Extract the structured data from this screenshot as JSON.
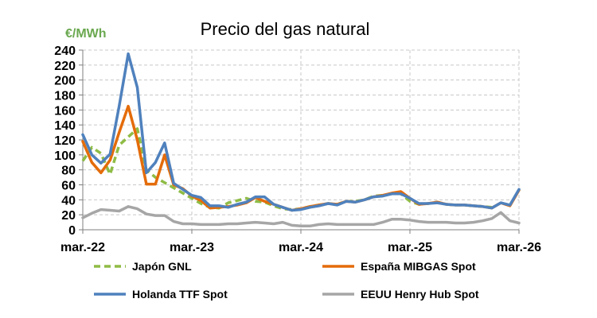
{
  "chart_data": {
    "type": "line",
    "title": "Precio del gas natural",
    "ylabel": "€/MWh",
    "ylim": [
      0,
      240
    ],
    "yticks": [
      0,
      20,
      40,
      60,
      80,
      100,
      120,
      140,
      160,
      180,
      200,
      220,
      240
    ],
    "xlim": [
      "2022-03",
      "2026-03"
    ],
    "xticks": [
      {
        "x": "2022-03",
        "label": "mar.-22"
      },
      {
        "x": "2023-03",
        "label": "mar.-23"
      },
      {
        "x": "2024-03",
        "label": "mar.-24"
      },
      {
        "x": "2025-03",
        "label": "mar.-25"
      },
      {
        "x": "2026-03",
        "label": "mar.-26"
      }
    ],
    "grid": true,
    "legend_position": "bottom",
    "series": [
      {
        "name": "Japón GNL",
        "color": "#8fbc45",
        "style": "dashed",
        "points": [
          [
            "2022-03",
            92
          ],
          [
            "2022-04",
            110
          ],
          [
            "2022-05",
            102
          ],
          [
            "2022-06",
            74
          ],
          [
            "2022-07",
            113
          ],
          [
            "2022-09",
            135
          ],
          [
            "2022-10",
            80
          ],
          [
            "2022-11",
            70
          ],
          [
            "2023-03",
            42
          ],
          [
            "2023-04",
            35
          ],
          [
            "2023-05",
            30
          ],
          [
            "2023-06",
            29
          ],
          [
            "2023-07",
            36
          ],
          [
            "2023-08",
            39
          ],
          [
            "2023-09",
            42
          ],
          [
            "2023-10",
            38
          ],
          [
            "2023-11",
            37
          ],
          [
            "2023-12",
            32
          ],
          [
            "2024-01",
            28
          ],
          [
            "2024-02",
            27
          ],
          [
            "2024-03",
            28
          ],
          [
            "2024-04",
            31
          ],
          [
            "2024-05",
            33
          ],
          [
            "2024-06",
            35
          ],
          [
            "2024-07",
            34
          ],
          [
            "2024-08",
            38
          ],
          [
            "2024-09",
            38
          ],
          [
            "2024-10",
            40
          ],
          [
            "2024-11",
            45
          ],
          [
            "2024-12",
            46
          ],
          [
            "2025-01",
            48
          ],
          [
            "2025-02",
            48
          ],
          [
            "2025-03",
            38
          ],
          [
            "2025-04",
            34
          ],
          [
            "2025-05",
            35
          ],
          [
            "2025-06",
            37
          ],
          [
            "2025-07",
            34
          ],
          [
            "2025-08",
            33
          ],
          [
            "2025-09",
            33
          ],
          [
            "2025-10",
            32
          ],
          [
            "2025-11",
            31
          ],
          [
            "2025-12",
            30
          ]
        ]
      },
      {
        "name": "España MIBGAS Spot",
        "color": "#e46c0a",
        "style": "solid",
        "points": [
          [
            "2022-03",
            118
          ],
          [
            "2022-04",
            90
          ],
          [
            "2022-05",
            76
          ],
          [
            "2022-06",
            93
          ],
          [
            "2022-07",
            130
          ],
          [
            "2022-08",
            165
          ],
          [
            "2022-09",
            120
          ],
          [
            "2022-10",
            61
          ],
          [
            "2022-11",
            61
          ],
          [
            "2022-12",
            100
          ],
          [
            "2023-01",
            60
          ],
          [
            "2023-02",
            55
          ],
          [
            "2023-03",
            45
          ],
          [
            "2023-04",
            39
          ],
          [
            "2023-05",
            29
          ],
          [
            "2023-06",
            30
          ],
          [
            "2023-07",
            31
          ],
          [
            "2023-08",
            33
          ],
          [
            "2023-09",
            36
          ],
          [
            "2023-10",
            43
          ],
          [
            "2023-11",
            38
          ],
          [
            "2023-12",
            34
          ],
          [
            "2024-01",
            30
          ],
          [
            "2024-02",
            26
          ],
          [
            "2024-03",
            28
          ],
          [
            "2024-04",
            31
          ],
          [
            "2024-05",
            33
          ],
          [
            "2024-06",
            35
          ],
          [
            "2024-07",
            34
          ],
          [
            "2024-08",
            38
          ],
          [
            "2024-09",
            37
          ],
          [
            "2024-10",
            40
          ],
          [
            "2024-11",
            44
          ],
          [
            "2024-12",
            46
          ],
          [
            "2025-01",
            49
          ],
          [
            "2025-02",
            51
          ],
          [
            "2025-03",
            42
          ],
          [
            "2025-04",
            34
          ],
          [
            "2025-05",
            35
          ],
          [
            "2025-06",
            37
          ],
          [
            "2025-07",
            34
          ],
          [
            "2025-08",
            33
          ],
          [
            "2025-09",
            33
          ],
          [
            "2025-10",
            32
          ],
          [
            "2025-11",
            31
          ],
          [
            "2025-12",
            29
          ],
          [
            "2026-01",
            36
          ],
          [
            "2026-02",
            32
          ],
          [
            "2026-03",
            53
          ]
        ]
      },
      {
        "name": "Holanda TTF Spot",
        "color": "#4f81bd",
        "style": "solid",
        "points": [
          [
            "2022-03",
            127
          ],
          [
            "2022-04",
            100
          ],
          [
            "2022-05",
            89
          ],
          [
            "2022-06",
            101
          ],
          [
            "2022-07",
            165
          ],
          [
            "2022-08",
            235
          ],
          [
            "2022-09",
            190
          ],
          [
            "2022-10",
            76
          ],
          [
            "2022-11",
            90
          ],
          [
            "2022-12",
            116
          ],
          [
            "2023-01",
            62
          ],
          [
            "2023-02",
            54
          ],
          [
            "2023-03",
            46
          ],
          [
            "2023-04",
            43
          ],
          [
            "2023-05",
            32
          ],
          [
            "2023-06",
            32
          ],
          [
            "2023-07",
            30
          ],
          [
            "2023-08",
            34
          ],
          [
            "2023-09",
            37
          ],
          [
            "2023-10",
            44
          ],
          [
            "2023-11",
            44
          ],
          [
            "2023-12",
            34
          ],
          [
            "2024-01",
            30
          ],
          [
            "2024-02",
            26
          ],
          [
            "2024-03",
            27
          ],
          [
            "2024-04",
            30
          ],
          [
            "2024-05",
            32
          ],
          [
            "2024-06",
            35
          ],
          [
            "2024-07",
            33
          ],
          [
            "2024-08",
            38
          ],
          [
            "2024-09",
            37
          ],
          [
            "2024-10",
            40
          ],
          [
            "2024-11",
            44
          ],
          [
            "2024-12",
            45
          ],
          [
            "2025-01",
            48
          ],
          [
            "2025-02",
            48
          ],
          [
            "2025-03",
            42
          ],
          [
            "2025-04",
            35
          ],
          [
            "2025-05",
            35
          ],
          [
            "2025-06",
            36
          ],
          [
            "2025-07",
            34
          ],
          [
            "2025-08",
            33
          ],
          [
            "2025-09",
            33
          ],
          [
            "2025-10",
            32
          ],
          [
            "2025-11",
            31
          ],
          [
            "2025-12",
            29
          ],
          [
            "2026-01",
            36
          ],
          [
            "2026-02",
            33
          ],
          [
            "2026-03",
            54
          ]
        ]
      },
      {
        "name": "EEUU Henry Hub Spot",
        "color": "#a6a6a6",
        "style": "solid",
        "points": [
          [
            "2022-03",
            16
          ],
          [
            "2022-04",
            22
          ],
          [
            "2022-05",
            27
          ],
          [
            "2022-06",
            26
          ],
          [
            "2022-07",
            25
          ],
          [
            "2022-08",
            31
          ],
          [
            "2022-09",
            28
          ],
          [
            "2022-10",
            21
          ],
          [
            "2022-11",
            19
          ],
          [
            "2022-12",
            19
          ],
          [
            "2023-01",
            11
          ],
          [
            "2023-02",
            8
          ],
          [
            "2023-03",
            8
          ],
          [
            "2023-04",
            7
          ],
          [
            "2023-05",
            7
          ],
          [
            "2023-06",
            7
          ],
          [
            "2023-07",
            8
          ],
          [
            "2023-08",
            8
          ],
          [
            "2023-09",
            9
          ],
          [
            "2023-10",
            10
          ],
          [
            "2023-11",
            9
          ],
          [
            "2023-12",
            8
          ],
          [
            "2024-01",
            10
          ],
          [
            "2024-02",
            6
          ],
          [
            "2024-03",
            5
          ],
          [
            "2024-04",
            5
          ],
          [
            "2024-05",
            7
          ],
          [
            "2024-06",
            8
          ],
          [
            "2024-07",
            7
          ],
          [
            "2024-08",
            7
          ],
          [
            "2024-09",
            7
          ],
          [
            "2024-10",
            7
          ],
          [
            "2024-11",
            7
          ],
          [
            "2024-12",
            10
          ],
          [
            "2025-01",
            14
          ],
          [
            "2025-02",
            14
          ],
          [
            "2025-03",
            13
          ],
          [
            "2025-04",
            11
          ],
          [
            "2025-05",
            10
          ],
          [
            "2025-06",
            10
          ],
          [
            "2025-07",
            10
          ],
          [
            "2025-08",
            9
          ],
          [
            "2025-09",
            9
          ],
          [
            "2025-10",
            10
          ],
          [
            "2025-11",
            12
          ],
          [
            "2025-12",
            15
          ],
          [
            "2026-01",
            23
          ],
          [
            "2026-02",
            12
          ],
          [
            "2026-03",
            9
          ]
        ]
      }
    ]
  }
}
